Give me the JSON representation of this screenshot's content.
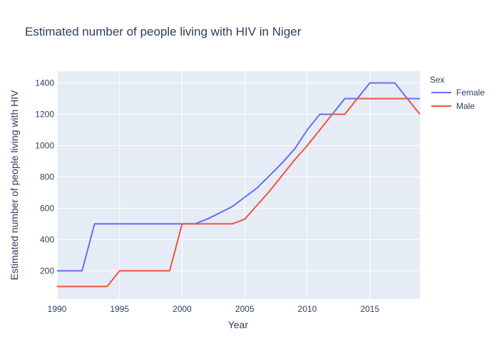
{
  "chart_data": {
    "type": "line",
    "title": "Estimated number of people living with HIV in Niger",
    "xlabel": "Year",
    "ylabel": "Estimated number of people living with HIV",
    "xlim": [
      1990,
      2019
    ],
    "ylim": [
      20,
      1475
    ],
    "xticks": [
      1990,
      1995,
      2000,
      2005,
      2010,
      2015
    ],
    "yticks": [
      200,
      400,
      600,
      800,
      1000,
      1200,
      1400
    ],
    "grid": true,
    "legend_title": "Sex",
    "legend_position": "right",
    "x": [
      1990,
      1991,
      1992,
      1993,
      1994,
      1995,
      1996,
      1997,
      1998,
      1999,
      2000,
      2001,
      2002,
      2003,
      2004,
      2005,
      2006,
      2007,
      2008,
      2009,
      2010,
      2011,
      2012,
      2013,
      2014,
      2015,
      2016,
      2017,
      2018,
      2019
    ],
    "series": [
      {
        "name": "Female",
        "color": "#636efa",
        "values": [
          200,
          200,
          200,
          500,
          500,
          500,
          500,
          500,
          500,
          500,
          500,
          500,
          530,
          570,
          610,
          670,
          730,
          810,
          890,
          980,
          1100,
          1200,
          1200,
          1300,
          1300,
          1400,
          1400,
          1400,
          1300,
          1300
        ]
      },
      {
        "name": "Male",
        "color": "#ef553b",
        "values": [
          100,
          100,
          100,
          100,
          100,
          200,
          200,
          200,
          200,
          200,
          500,
          500,
          500,
          500,
          500,
          530,
          620,
          710,
          810,
          910,
          1000,
          1100,
          1200,
          1200,
          1300,
          1300,
          1300,
          1300,
          1300,
          1200
        ]
      }
    ]
  }
}
